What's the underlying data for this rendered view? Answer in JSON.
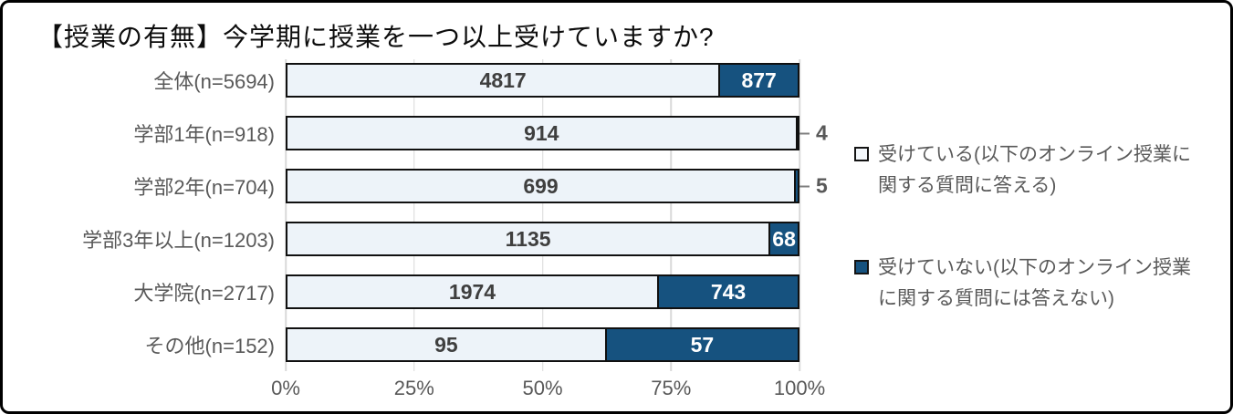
{
  "title": "【授業の有無】今学期に授業を一つ以上受けていますか?",
  "colors": {
    "light_fill": "#EDF3F9",
    "dark_fill": "#16527F",
    "bar_border": "#101010",
    "gridline": "#D9D9D9",
    "muted_text": "#595959",
    "value_text_on_light": "#3F3F3F",
    "value_text_on_dark": "#FFFFFF",
    "title_text": "#0D0D0D"
  },
  "chart_data": {
    "type": "bar",
    "orientation": "horizontal",
    "stacked": true,
    "normalized": "100%",
    "title": "【授業の有無】今学期に授業を一つ以上受けていますか?",
    "categories": [
      "全体(n=5694)",
      "学部1年(n=918)",
      "学部2年(n=704)",
      "学部3年以上(n=1203)",
      "大学院(n=2717)",
      "その他(n=152)"
    ],
    "totals": [
      5694,
      918,
      704,
      1203,
      2717,
      152
    ],
    "series": [
      {
        "name": "受けている(以下のオンライン授業に関する質問に答える)",
        "values": [
          4817,
          914,
          699,
          1135,
          1974,
          95
        ]
      },
      {
        "name": "受けていない(以下のオンライン授業に関する質問には答えない)",
        "values": [
          877,
          4,
          5,
          68,
          743,
          57
        ]
      }
    ],
    "x_axis": {
      "ticks": [
        "0%",
        "25%",
        "50%",
        "75%",
        "100%"
      ],
      "range": [
        0,
        100
      ],
      "unit": "percent"
    },
    "grid": true,
    "legend_position": "right",
    "outside_label_threshold_percent": 3
  },
  "legend": {
    "items": [
      {
        "label": "受けている(以下のオンライン授業に関する質問に答える)",
        "swatch": "light"
      },
      {
        "label": "受けていない(以下のオンライン授業に関する質問には答えない)",
        "swatch": "dark"
      }
    ]
  }
}
